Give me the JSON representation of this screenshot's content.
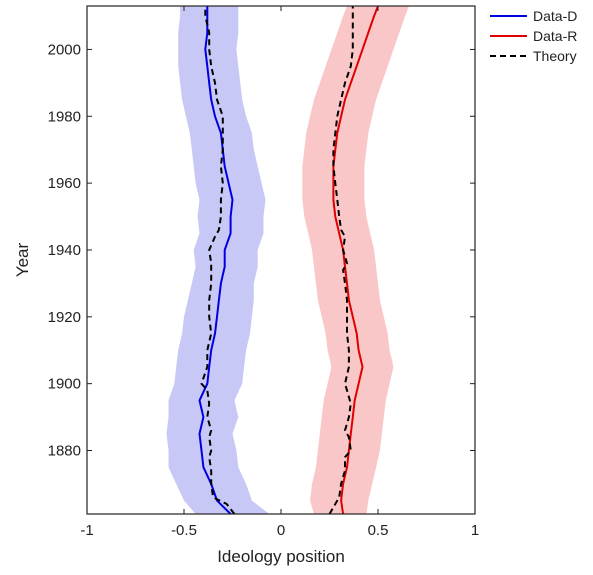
{
  "chart_data": {
    "type": "line",
    "xlabel": "Ideology position",
    "ylabel": "Year",
    "xlim": [
      -1,
      1
    ],
    "ylim": [
      1861,
      2013
    ],
    "xticks": [
      -1,
      -0.5,
      0,
      0.5,
      1
    ],
    "xtick_labels": [
      "-1",
      "-0.5",
      "0",
      "0.5",
      "1"
    ],
    "yticks": [
      1880,
      1900,
      1920,
      1940,
      1960,
      1980,
      2000
    ],
    "ytick_labels": [
      "1880",
      "1900",
      "1920",
      "1940",
      "1960",
      "1980",
      "2000"
    ],
    "legend_position": "outside-top-right",
    "series": [
      {
        "name": "Data-D",
        "color": "#0000e0",
        "band_color": "#c8c8f6",
        "style": "solid",
        "y": [
          1861,
          1865,
          1870,
          1875,
          1880,
          1885,
          1890,
          1895,
          1900,
          1905,
          1910,
          1915,
          1920,
          1925,
          1930,
          1935,
          1940,
          1945,
          1950,
          1955,
          1960,
          1965,
          1970,
          1975,
          1980,
          1985,
          1990,
          1995,
          2000,
          2005,
          2010,
          2013
        ],
        "x": [
          -0.26,
          -0.33,
          -0.36,
          -0.4,
          -0.41,
          -0.42,
          -0.4,
          -0.42,
          -0.38,
          -0.37,
          -0.36,
          -0.34,
          -0.33,
          -0.32,
          -0.31,
          -0.29,
          -0.29,
          -0.26,
          -0.26,
          -0.25,
          -0.27,
          -0.29,
          -0.3,
          -0.31,
          -0.34,
          -0.36,
          -0.37,
          -0.38,
          -0.39,
          -0.38,
          -0.38,
          -0.38
        ],
        "band_low": [
          -0.44,
          -0.5,
          -0.54,
          -0.58,
          -0.58,
          -0.59,
          -0.58,
          -0.58,
          -0.55,
          -0.54,
          -0.53,
          -0.51,
          -0.5,
          -0.48,
          -0.46,
          -0.44,
          -0.45,
          -0.42,
          -0.43,
          -0.42,
          -0.44,
          -0.45,
          -0.46,
          -0.47,
          -0.49,
          -0.51,
          -0.52,
          -0.53,
          -0.53,
          -0.53,
          -0.52,
          -0.52
        ],
        "band_high": [
          -0.06,
          -0.15,
          -0.18,
          -0.22,
          -0.23,
          -0.25,
          -0.22,
          -0.24,
          -0.2,
          -0.19,
          -0.18,
          -0.16,
          -0.15,
          -0.14,
          -0.14,
          -0.12,
          -0.12,
          -0.09,
          -0.09,
          -0.08,
          -0.1,
          -0.12,
          -0.14,
          -0.15,
          -0.18,
          -0.2,
          -0.21,
          -0.22,
          -0.23,
          -0.22,
          -0.22,
          -0.22
        ]
      },
      {
        "name": "Data-R",
        "color": "#e00000",
        "band_color": "#f9c7c7",
        "style": "solid",
        "y": [
          1861,
          1865,
          1870,
          1875,
          1880,
          1885,
          1890,
          1895,
          1900,
          1905,
          1910,
          1915,
          1920,
          1925,
          1930,
          1935,
          1940,
          1945,
          1950,
          1955,
          1960,
          1965,
          1970,
          1975,
          1980,
          1985,
          1990,
          1995,
          2000,
          2005,
          2010,
          2013
        ],
        "x": [
          0.32,
          0.31,
          0.32,
          0.34,
          0.35,
          0.36,
          0.37,
          0.38,
          0.4,
          0.42,
          0.4,
          0.39,
          0.37,
          0.35,
          0.34,
          0.33,
          0.32,
          0.3,
          0.28,
          0.27,
          0.27,
          0.27,
          0.28,
          0.29,
          0.31,
          0.33,
          0.36,
          0.39,
          0.42,
          0.45,
          0.48,
          0.5
        ],
        "band_low": [
          0.17,
          0.15,
          0.16,
          0.18,
          0.19,
          0.2,
          0.21,
          0.22,
          0.24,
          0.26,
          0.24,
          0.23,
          0.21,
          0.19,
          0.18,
          0.17,
          0.16,
          0.14,
          0.12,
          0.11,
          0.11,
          0.11,
          0.12,
          0.13,
          0.15,
          0.17,
          0.2,
          0.23,
          0.26,
          0.29,
          0.32,
          0.34
        ],
        "band_high": [
          0.44,
          0.45,
          0.47,
          0.49,
          0.51,
          0.52,
          0.53,
          0.54,
          0.56,
          0.58,
          0.56,
          0.55,
          0.53,
          0.51,
          0.5,
          0.49,
          0.48,
          0.46,
          0.44,
          0.43,
          0.43,
          0.43,
          0.44,
          0.45,
          0.47,
          0.49,
          0.52,
          0.55,
          0.58,
          0.61,
          0.64,
          0.66
        ]
      },
      {
        "name": "Theory",
        "color": "#000000",
        "style": "dashed",
        "segments": [
          {
            "y": [
              1861,
              1864,
              1866,
              1870,
              1874,
              1878,
              1880,
              1884,
              1886,
              1890,
              1894,
              1898,
              1900,
              1905,
              1910,
              1915,
              1920,
              1925,
              1930,
              1934,
              1936,
              1940,
              1944,
              1946,
              1950,
              1955,
              1960,
              1965,
              1970,
              1975,
              1980,
              1985,
              1990,
              1995,
              2000,
              2005,
              2010,
              2013
            ],
            "x": [
              -0.24,
              -0.28,
              -0.35,
              -0.36,
              -0.36,
              -0.37,
              -0.36,
              -0.37,
              -0.36,
              -0.38,
              -0.37,
              -0.38,
              -0.41,
              -0.38,
              -0.38,
              -0.36,
              -0.37,
              -0.37,
              -0.36,
              -0.36,
              -0.36,
              -0.37,
              -0.34,
              -0.32,
              -0.31,
              -0.31,
              -0.3,
              -0.31,
              -0.3,
              -0.3,
              -0.3,
              -0.33,
              -0.34,
              -0.36,
              -0.37,
              -0.37,
              -0.39,
              -0.39
            ]
          },
          {
            "y": [
              1861,
              1864,
              1866,
              1870,
              1874,
              1878,
              1880,
              1884,
              1886,
              1890,
              1894,
              1898,
              1900,
              1905,
              1910,
              1915,
              1920,
              1925,
              1930,
              1934,
              1936,
              1940,
              1944,
              1946,
              1950,
              1955,
              1960,
              1965,
              1970,
              1975,
              1980,
              1985,
              1990,
              1995,
              2000,
              2005,
              2010,
              2013
            ],
            "x": [
              0.25,
              0.28,
              0.3,
              0.31,
              0.33,
              0.33,
              0.36,
              0.35,
              0.33,
              0.35,
              0.36,
              0.34,
              0.33,
              0.35,
              0.35,
              0.34,
              0.34,
              0.34,
              0.33,
              0.32,
              0.34,
              0.32,
              0.33,
              0.31,
              0.3,
              0.29,
              0.28,
              0.27,
              0.27,
              0.28,
              0.29,
              0.31,
              0.33,
              0.36,
              0.37,
              0.37,
              0.37,
              0.37
            ]
          }
        ]
      }
    ]
  }
}
